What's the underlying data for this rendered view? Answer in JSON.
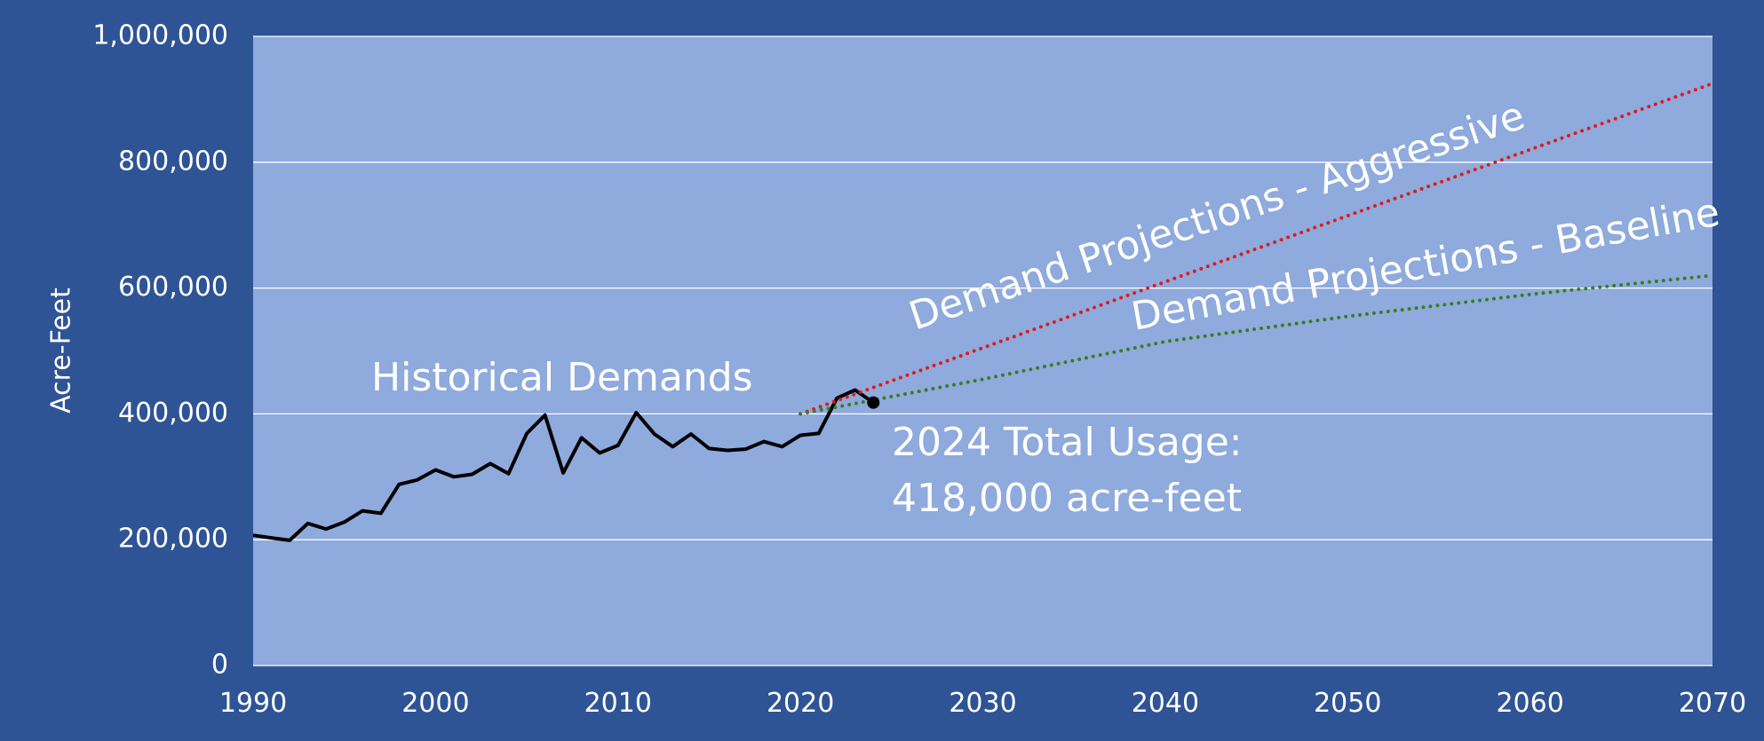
{
  "chart_data": {
    "type": "line",
    "y_label": "Acre-Feet",
    "xlim": [
      1990,
      2070
    ],
    "xticks": [
      1990,
      2000,
      2010,
      2020,
      2030,
      2040,
      2050,
      2060,
      2070
    ],
    "ylim": [
      0,
      1000000
    ],
    "yticks": [
      {
        "value": 0,
        "label": "0"
      },
      {
        "value": 200000,
        "label": "200,000"
      },
      {
        "value": 400000,
        "label": "400,000"
      },
      {
        "value": 600000,
        "label": "600,000"
      },
      {
        "value": 800000,
        "label": "800,000"
      },
      {
        "value": 1000000,
        "label": "1,000,000"
      }
    ],
    "grid": true,
    "series": [
      {
        "name": "Historical Demands",
        "color": "#000000",
        "style": "solid",
        "x": [
          1990,
          1991,
          1992,
          1993,
          1994,
          1995,
          1996,
          1997,
          1998,
          1999,
          2000,
          2001,
          2002,
          2003,
          2004,
          2005,
          2006,
          2007,
          2008,
          2009,
          2010,
          2011,
          2012,
          2013,
          2014,
          2015,
          2016,
          2017,
          2018,
          2019,
          2020,
          2021,
          2022,
          2023,
          2024
        ],
        "values": [
          207000,
          203000,
          199000,
          226000,
          217000,
          228000,
          246000,
          242000,
          288000,
          295000,
          311000,
          300000,
          304000,
          321000,
          305000,
          369000,
          398000,
          306000,
          362000,
          338000,
          350000,
          402000,
          368000,
          348000,
          368000,
          345000,
          342000,
          344000,
          356000,
          348000,
          366000,
          369000,
          425000,
          438000,
          418000
        ]
      },
      {
        "name": "Demand Projections - Aggressive",
        "color": "#e01a1a",
        "style": "dotted",
        "x": [
          2020,
          2030,
          2040,
          2050,
          2060,
          2070
        ],
        "values": [
          400000,
          505000,
          610000,
          715000,
          820000,
          925000
        ]
      },
      {
        "name": "Demand Projections - Baseline",
        "color": "#3a7d22",
        "style": "dotted",
        "x": [
          2020,
          2030,
          2040,
          2050,
          2060,
          2070
        ],
        "values": [
          400000,
          455000,
          515000,
          555000,
          590000,
          620000
        ]
      }
    ],
    "annotation": [
      "2024 Total Usage:",
      "418,000 acre-feet"
    ]
  }
}
